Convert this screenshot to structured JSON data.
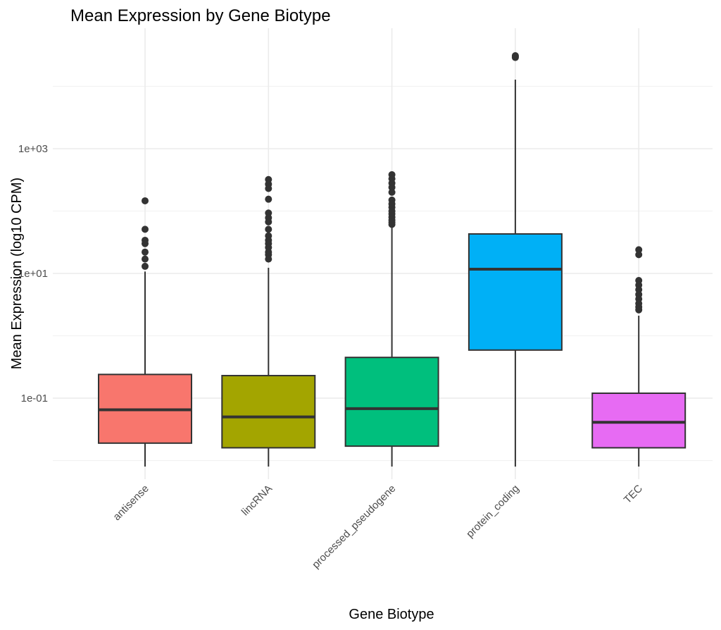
{
  "chart_data": {
    "type": "boxplot",
    "title": "Mean Expression by Gene Biotype",
    "xlabel": "Gene Biotype",
    "ylabel": "Mean Expression (log10 CPM)",
    "y_scale": "log10",
    "ylim": [
      0.004,
      90000
    ],
    "y_major_ticks": [
      {
        "value": 0.1,
        "label": "1e-01"
      },
      {
        "value": 10,
        "label": "1e+01"
      },
      {
        "value": 1000,
        "label": "1e+03"
      }
    ],
    "y_minor_gridlines": [
      0.01,
      1,
      100,
      10000
    ],
    "grid": true,
    "legend": "none",
    "categories": [
      "antisense",
      "lincRNA",
      "processed_pseudogene",
      "protein_coding",
      "TEC"
    ],
    "series": [
      {
        "name": "antisense",
        "color": "#F8766D",
        "whisker_low": 0.008,
        "q1": 0.019,
        "median": 0.065,
        "q3": 0.24,
        "whisker_high": 10.7,
        "outliers": [
          146,
          51,
          34,
          30,
          22,
          17,
          13
        ]
      },
      {
        "name": "lincRNA",
        "color": "#A3A500",
        "whisker_low": 0.008,
        "q1": 0.016,
        "median": 0.05,
        "q3": 0.23,
        "whisker_high": 12.3,
        "outliers": [
          320,
          270,
          230,
          155,
          93,
          78,
          67,
          51,
          40,
          34,
          30,
          26,
          22,
          20,
          17
        ]
      },
      {
        "name": "processed_pseudogene",
        "color": "#00BF7D",
        "whisker_low": 0.008,
        "q1": 0.017,
        "median": 0.068,
        "q3": 0.45,
        "whisker_high": 59,
        "outliers": [
          383,
          330,
          280,
          240,
          200,
          150,
          130,
          115,
          100,
          90,
          80,
          72,
          66,
          61
        ]
      },
      {
        "name": "protein_coding",
        "color": "#00B0F6",
        "whisker_low": 0.008,
        "q1": 0.59,
        "median": 11.7,
        "q3": 43,
        "whisker_high": 12800,
        "outliers": [
          31000,
          30000,
          29000
        ]
      },
      {
        "name": "TEC",
        "color": "#E76BF3",
        "whisker_low": 0.008,
        "q1": 0.016,
        "median": 0.041,
        "q3": 0.12,
        "whisker_high": 2.1,
        "outliers": [
          24,
          20,
          7.7,
          6.5,
          5.5,
          4.6,
          3.9,
          3.3,
          2.9,
          2.6
        ]
      }
    ]
  }
}
